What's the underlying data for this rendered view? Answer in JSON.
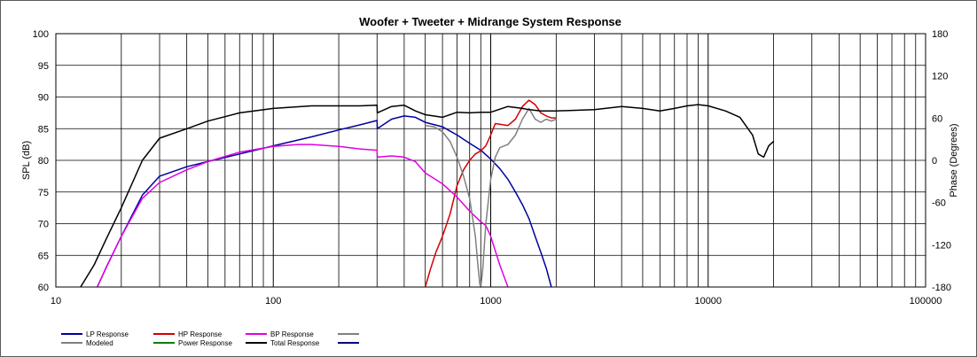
{
  "chart_data": {
    "type": "line",
    "title": "Woofer + Tweeter + Midrange  System Response",
    "xlabel": "",
    "ylabel": "SPL (dB)",
    "y2label": "Phase (Degrees)",
    "xscale": "log",
    "xlim": [
      10,
      100000
    ],
    "ylim": [
      60,
      100
    ],
    "y2lim": [
      -180,
      180
    ],
    "grid": true,
    "legend_position": "bottom",
    "x_ticks": [
      "10",
      "100",
      "1000",
      "10000",
      "100000"
    ],
    "y_ticks": [
      "100",
      "95",
      "90",
      "85",
      "80",
      "75",
      "70",
      "65",
      "60"
    ],
    "y2_ticks": [
      "180",
      "120",
      "60",
      "0",
      "-60",
      "-120",
      "-180"
    ],
    "series": [
      {
        "name": "LP Response",
        "color": "#0000a0",
        "x": [
          15.5,
          17,
          20,
          25,
          30,
          40,
          50,
          70,
          100,
          150,
          200,
          250,
          300,
          301,
          350,
          400,
          450,
          500,
          600,
          700,
          800,
          900,
          1000,
          1100,
          1200,
          1300,
          1400,
          1500,
          1600,
          1700,
          1800,
          1900
        ],
        "y": [
          60,
          63,
          68,
          74.5,
          77.5,
          79,
          79.8,
          81,
          82.3,
          83.7,
          84.8,
          85.6,
          86.3,
          85,
          86.5,
          87,
          86.8,
          86,
          85.3,
          84,
          82.7,
          81.6,
          80.2,
          78.7,
          77,
          75,
          73,
          70.8,
          68,
          65.5,
          63,
          60
        ]
      },
      {
        "name": "HP Response",
        "color": "#d40000",
        "x": [
          500,
          530,
          560,
          600,
          650,
          700,
          750,
          800,
          850,
          900,
          950,
          1000,
          1050,
          1100,
          1200,
          1300,
          1400,
          1500,
          1600,
          1700,
          1800,
          1900,
          2000
        ],
        "y": [
          60,
          63,
          65.5,
          68,
          71.5,
          76,
          78.5,
          80,
          81,
          81.5,
          82.3,
          84,
          85.8,
          85.7,
          85.5,
          86.5,
          88.5,
          89.5,
          88.8,
          87.5,
          87,
          86.7,
          86.7
        ]
      },
      {
        "name": "BP Response",
        "color": "#e000e0",
        "x": [
          15.5,
          17,
          20,
          25,
          30,
          40,
          50,
          70,
          100,
          130,
          150,
          200,
          250,
          300,
          301,
          350,
          400,
          450,
          500,
          600,
          700,
          800,
          900,
          950,
          1000,
          1100,
          1200
        ],
        "y": [
          60,
          63,
          68,
          74,
          76.5,
          78.5,
          79.8,
          81.3,
          82.2,
          82.5,
          82.5,
          82.2,
          81.8,
          81.6,
          80.5,
          80.7,
          80.5,
          79.8,
          78,
          76.3,
          74.2,
          72,
          70.3,
          69.7,
          68,
          63.5,
          60
        ]
      },
      {
        "name": "",
        "color": "#808080",
        "x": [
          500,
          550,
          600,
          650,
          700,
          750,
          800,
          850,
          870,
          890,
          900,
          920,
          950,
          1000,
          1050,
          1100,
          1200,
          1300,
          1400,
          1500,
          1600,
          1700,
          1800,
          1900,
          2000
        ],
        "y": [
          85.5,
          85.3,
          84.5,
          83,
          80.5,
          77.5,
          74,
          68,
          64,
          60.5,
          60,
          63,
          70,
          77,
          80.5,
          82,
          82.5,
          84,
          86.5,
          88.2,
          86.5,
          86,
          86.5,
          86.2,
          86.5
        ]
      },
      {
        "name": "Total Response",
        "color": "#000000",
        "x": [
          13,
          15,
          17,
          20,
          25,
          30,
          40,
          50,
          70,
          100,
          150,
          200,
          250,
          300,
          301,
          350,
          400,
          450,
          500,
          600,
          700,
          800,
          900,
          1000,
          1200,
          1400,
          1500,
          1700,
          2000,
          3000,
          4000,
          5000,
          6000,
          7000,
          8000,
          9000,
          10000,
          12000,
          14000,
          16000,
          17000,
          18000,
          19000,
          20000
        ],
        "y": [
          60,
          63.5,
          67.5,
          72.5,
          80,
          83.5,
          85,
          86.2,
          87.5,
          88.2,
          88.6,
          88.6,
          88.6,
          88.7,
          87.5,
          88.5,
          88.7,
          87.8,
          87.2,
          86.8,
          87.6,
          87.5,
          87.6,
          87.6,
          88.5,
          88.2,
          88,
          87.8,
          87.8,
          88,
          88.5,
          88.2,
          87.8,
          88.2,
          88.6,
          88.8,
          88.6,
          87.8,
          86.8,
          84,
          81,
          80.5,
          82.3,
          83
        ]
      }
    ],
    "legend": [
      {
        "name": "LP Response",
        "color": "#0000a0"
      },
      {
        "name": "Modeled",
        "color": "#808080"
      },
      {
        "name": "HP Response",
        "color": "#d40000"
      },
      {
        "name": "Power Response",
        "color": "#008000"
      },
      {
        "name": "BP Response",
        "color": "#e000e0"
      },
      {
        "name": "Total Response",
        "color": "#000000"
      },
      {
        "name": "",
        "color": "#808080"
      },
      {
        "name": "",
        "color": "#000080"
      }
    ]
  }
}
